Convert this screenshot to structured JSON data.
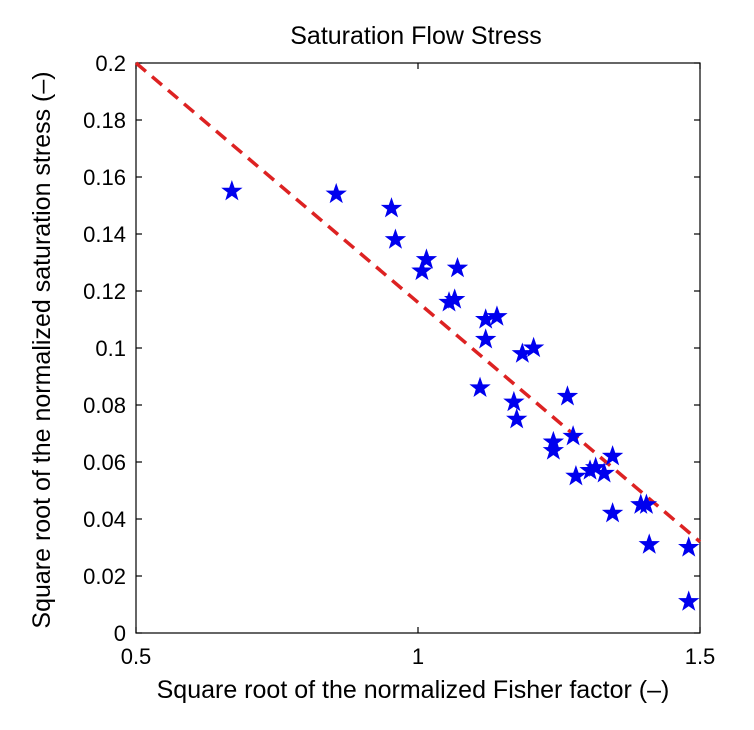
{
  "chart_data": {
    "type": "scatter",
    "title": "Saturation Flow Stress",
    "xlabel": "Square root of the normalized Fisher factor (–)",
    "ylabel": "Square root of the normalized saturation stress (–)",
    "xlim": [
      0.5,
      1.5
    ],
    "ylim": [
      0,
      0.2
    ],
    "x_ticks": [
      0.5,
      1,
      1.5
    ],
    "x_tick_labels": [
      "0.5",
      "1",
      "1.5"
    ],
    "y_ticks": [
      0,
      0.02,
      0.04,
      0.06,
      0.08,
      0.1,
      0.12,
      0.14,
      0.16,
      0.18,
      0.2
    ],
    "y_tick_labels": [
      "0",
      "0.02",
      "0.04",
      "0.06",
      "0.08",
      "0.1",
      "0.12",
      "0.14",
      "0.16",
      "0.18",
      "0.2"
    ],
    "grid": false,
    "series": [
      {
        "name": "data",
        "marker": "star",
        "color": "#0000ee",
        "points": [
          {
            "x": 0.67,
            "y": 0.155
          },
          {
            "x": 0.855,
            "y": 0.154
          },
          {
            "x": 0.953,
            "y": 0.149
          },
          {
            "x": 0.96,
            "y": 0.138
          },
          {
            "x": 1.007,
            "y": 0.127
          },
          {
            "x": 1.015,
            "y": 0.131
          },
          {
            "x": 1.07,
            "y": 0.128
          },
          {
            "x": 1.055,
            "y": 0.116
          },
          {
            "x": 1.065,
            "y": 0.117
          },
          {
            "x": 1.12,
            "y": 0.11
          },
          {
            "x": 1.14,
            "y": 0.111
          },
          {
            "x": 1.12,
            "y": 0.103
          },
          {
            "x": 1.185,
            "y": 0.098
          },
          {
            "x": 1.205,
            "y": 0.1
          },
          {
            "x": 1.11,
            "y": 0.086
          },
          {
            "x": 1.17,
            "y": 0.081
          },
          {
            "x": 1.175,
            "y": 0.075
          },
          {
            "x": 1.265,
            "y": 0.083
          },
          {
            "x": 1.24,
            "y": 0.067
          },
          {
            "x": 1.24,
            "y": 0.064
          },
          {
            "x": 1.275,
            "y": 0.069
          },
          {
            "x": 1.28,
            "y": 0.055
          },
          {
            "x": 1.305,
            "y": 0.057
          },
          {
            "x": 1.315,
            "y": 0.058
          },
          {
            "x": 1.33,
            "y": 0.056
          },
          {
            "x": 1.345,
            "y": 0.062
          },
          {
            "x": 1.345,
            "y": 0.042
          },
          {
            "x": 1.395,
            "y": 0.045
          },
          {
            "x": 1.405,
            "y": 0.045
          },
          {
            "x": 1.41,
            "y": 0.031
          },
          {
            "x": 1.48,
            "y": 0.03
          },
          {
            "x": 1.48,
            "y": 0.011
          }
        ]
      },
      {
        "name": "fit",
        "style": "dashed-line",
        "color": "#dd2222",
        "x": [
          0.5,
          1.5
        ],
        "y": [
          0.2,
          0.032
        ]
      }
    ]
  }
}
